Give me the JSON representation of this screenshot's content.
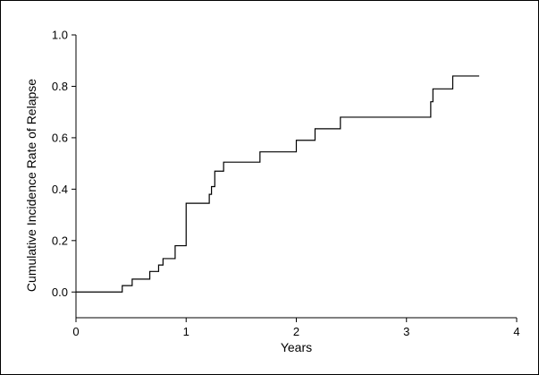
{
  "chart_data": {
    "type": "line",
    "title": "",
    "xlabel": "Years",
    "ylabel": "Cumulative Incidence Rate of Relapse",
    "xlim": [
      0,
      4
    ],
    "ylim": [
      -0.1,
      1.0
    ],
    "x_ticks": [
      0,
      1,
      2,
      3,
      4
    ],
    "x_tick_labels": [
      "0",
      "1",
      "2",
      "3",
      "4"
    ],
    "y_ticks": [
      0.0,
      0.2,
      0.4,
      0.6,
      0.8,
      1.0
    ],
    "y_tick_labels": [
      "0.0",
      "0.2",
      "0.4",
      "0.6",
      "0.8",
      "1.0"
    ],
    "grid": false,
    "legend": "none",
    "series": [
      {
        "step": true,
        "x": [
          0,
          0.42,
          0.51,
          0.67,
          0.75,
          0.79,
          0.9,
          1.0,
          1.21,
          1.23,
          1.26,
          1.34,
          1.67,
          2.0,
          2.17,
          2.4,
          3.22,
          3.24,
          3.42,
          3.66
        ],
        "y": [
          0.0,
          0.025,
          0.05,
          0.08,
          0.105,
          0.13,
          0.18,
          0.345,
          0.38,
          0.41,
          0.47,
          0.505,
          0.545,
          0.59,
          0.635,
          0.68,
          0.74,
          0.79,
          0.84,
          0.84
        ]
      }
    ],
    "colors": {
      "line": "#000000",
      "axis": "#000000"
    }
  }
}
